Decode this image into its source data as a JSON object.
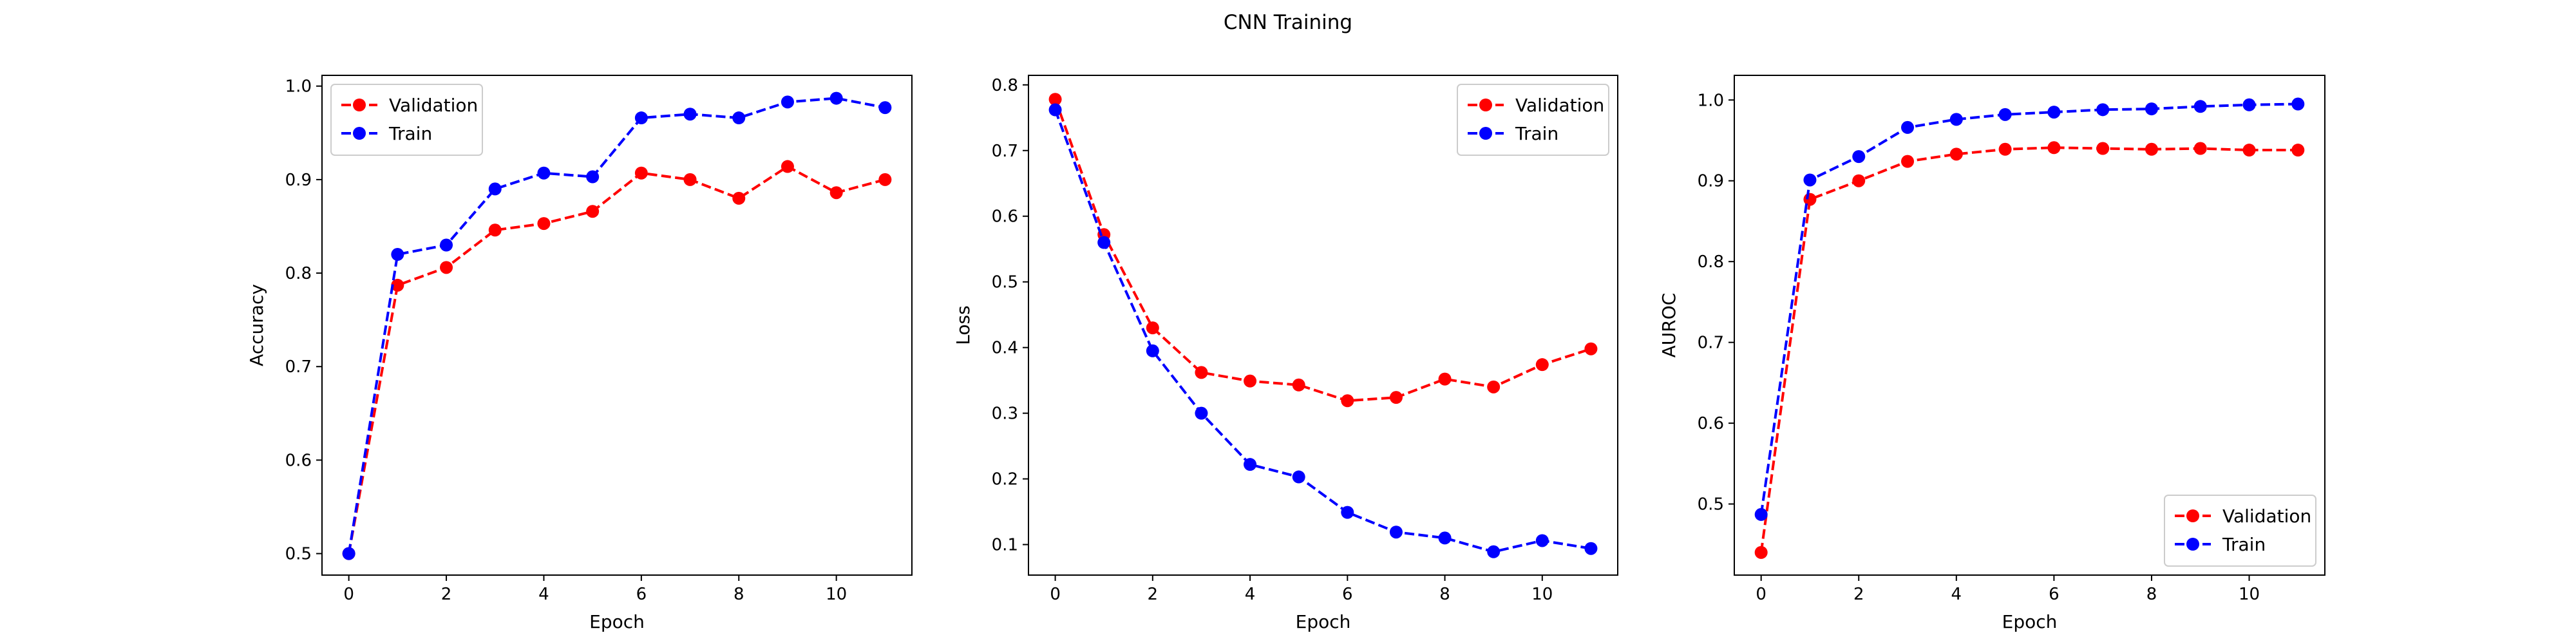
{
  "figure": {
    "suptitle": "CNN Training"
  },
  "chart_data": [
    {
      "type": "line",
      "title": "",
      "xlabel": "Epoch",
      "ylabel": "Accuracy",
      "xlim": [
        -0.55,
        11.55
      ],
      "ylim": [
        0.477,
        1.0115
      ],
      "xticks": [
        0,
        2,
        4,
        6,
        8,
        10
      ],
      "yticks": [
        0.5,
        0.6,
        0.7,
        0.8,
        0.9,
        1.0
      ],
      "ytick_labels": [
        "0.5",
        "0.6",
        "0.7",
        "0.8",
        "0.9",
        "1.0"
      ],
      "grid": false,
      "legend_loc": "upper left",
      "x": [
        0,
        1,
        2,
        3,
        4,
        5,
        6,
        7,
        8,
        9,
        10,
        11
      ],
      "series": [
        {
          "name": "Validation",
          "color": "#ff0000",
          "values": [
            0.5,
            0.787,
            0.806,
            0.846,
            0.853,
            0.866,
            0.907,
            0.9,
            0.88,
            0.914,
            0.886,
            0.9
          ]
        },
        {
          "name": "Train",
          "color": "#0000ff",
          "values": [
            0.5,
            0.82,
            0.83,
            0.89,
            0.907,
            0.903,
            0.966,
            0.97,
            0.966,
            0.983,
            0.987,
            0.977
          ]
        }
      ]
    },
    {
      "type": "line",
      "title": "",
      "xlabel": "Epoch",
      "ylabel": "Loss",
      "xlim": [
        -0.55,
        11.55
      ],
      "ylim": [
        0.0535,
        0.8145
      ],
      "xticks": [
        0,
        2,
        4,
        6,
        8,
        10
      ],
      "yticks": [
        0.1,
        0.2,
        0.3,
        0.4,
        0.5,
        0.6,
        0.7,
        0.8
      ],
      "ytick_labels": [
        "0.1",
        "0.2",
        "0.3",
        "0.4",
        "0.5",
        "0.6",
        "0.7",
        "0.8"
      ],
      "grid": false,
      "legend_loc": "upper right",
      "x": [
        0,
        1,
        2,
        3,
        4,
        5,
        6,
        7,
        8,
        9,
        10,
        11
      ],
      "series": [
        {
          "name": "Validation",
          "color": "#ff0000",
          "values": [
            0.778,
            0.572,
            0.43,
            0.362,
            0.349,
            0.343,
            0.319,
            0.324,
            0.352,
            0.34,
            0.374,
            0.398
          ]
        },
        {
          "name": "Train",
          "color": "#0000ff",
          "values": [
            0.762,
            0.56,
            0.395,
            0.3,
            0.222,
            0.203,
            0.149,
            0.119,
            0.11,
            0.089,
            0.106,
            0.094
          ]
        }
      ]
    },
    {
      "type": "line",
      "title": "",
      "xlabel": "Epoch",
      "ylabel": "AUROC",
      "xlim": [
        -0.55,
        11.55
      ],
      "ylim": [
        0.412,
        1.0305
      ],
      "xticks": [
        0,
        2,
        4,
        6,
        8,
        10
      ],
      "yticks": [
        0.5,
        0.6,
        0.7,
        0.8,
        0.9,
        1.0
      ],
      "ytick_labels": [
        "0.5",
        "0.6",
        "0.7",
        "0.8",
        "0.9",
        "1.0"
      ],
      "grid": false,
      "legend_loc": "lower right",
      "x": [
        0,
        1,
        2,
        3,
        4,
        5,
        6,
        7,
        8,
        9,
        10,
        11
      ],
      "series": [
        {
          "name": "Validation",
          "color": "#ff0000",
          "values": [
            0.44,
            0.877,
            0.9,
            0.924,
            0.933,
            0.939,
            0.941,
            0.94,
            0.939,
            0.94,
            0.938,
            0.938
          ]
        },
        {
          "name": "Train",
          "color": "#0000ff",
          "values": [
            0.487,
            0.901,
            0.93,
            0.966,
            0.976,
            0.982,
            0.985,
            0.988,
            0.989,
            0.992,
            0.994,
            0.995
          ]
        }
      ]
    }
  ]
}
